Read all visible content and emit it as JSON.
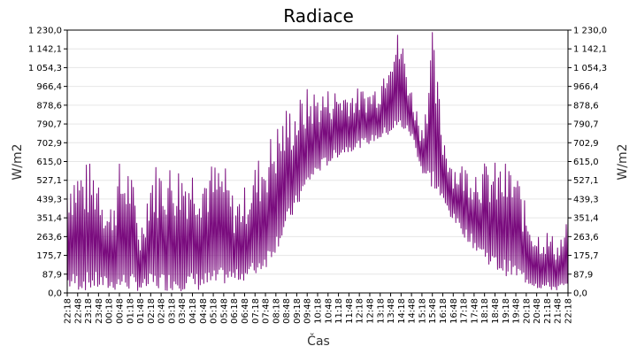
{
  "chart_data": {
    "type": "line",
    "title": "Radiace",
    "xlabel": "Čas",
    "ylabel_left": "W/m2",
    "ylabel_right": "W/m2",
    "ylim": [
      0,
      1230
    ],
    "yticks": [
      "0,0",
      "87,9",
      "175,7",
      "263,6",
      "351,4",
      "439,3",
      "527,1",
      "615,0",
      "702,9",
      "790,7",
      "878,6",
      "966,4",
      "1 054,3",
      "1 142,1",
      "1 230,0"
    ],
    "xticks": [
      "22:18",
      "22:48",
      "23:18",
      "23:48",
      "00:18",
      "00:48",
      "01:18",
      "01:48",
      "02:18",
      "02:48",
      "03:18",
      "03:48",
      "04:18",
      "04:48",
      "05:18",
      "05:48",
      "06:18",
      "06:48",
      "07:18",
      "07:48",
      "08:18",
      "08:48",
      "09:18",
      "09:48",
      "10:18",
      "10:48",
      "11:18",
      "11:48",
      "12:18",
      "12:48",
      "13:18",
      "13:48",
      "14:18",
      "14:48",
      "15:18",
      "15:48",
      "16:18",
      "16:48",
      "17:18",
      "17:48",
      "18:18",
      "18:48",
      "19:18",
      "19:48",
      "20:18",
      "20:48",
      "21:18",
      "21:48",
      "22:18"
    ],
    "grid": true,
    "legend": "none",
    "series": [
      {
        "color": "#7a0c7e",
        "x": [
          "22:18",
          "22:48",
          "23:18",
          "23:48",
          "00:18",
          "00:48",
          "01:18",
          "01:48",
          "02:18",
          "02:48",
          "03:18",
          "03:48",
          "04:18",
          "04:48",
          "05:18",
          "05:48",
          "06:18",
          "06:48",
          "07:18",
          "07:48",
          "08:18",
          "08:48",
          "09:18",
          "09:48",
          "10:18",
          "10:48",
          "11:18",
          "11:48",
          "12:18",
          "12:48",
          "13:18",
          "13:48",
          "14:18",
          "14:48",
          "15:18",
          "15:48",
          "16:18",
          "16:48",
          "17:18",
          "17:48",
          "18:18",
          "18:48",
          "19:18",
          "19:48",
          "20:18",
          "20:48",
          "21:18",
          "21:48",
          "22:18"
        ],
        "low": [
          10,
          10,
          10,
          10,
          10,
          10,
          10,
          10,
          10,
          10,
          10,
          10,
          10,
          10,
          20,
          40,
          50,
          60,
          80,
          120,
          200,
          300,
          400,
          500,
          560,
          600,
          640,
          660,
          680,
          700,
          720,
          740,
          760,
          720,
          550,
          480,
          400,
          330,
          260,
          200,
          150,
          100,
          80,
          60,
          40,
          20,
          10,
          10,
          10
        ],
        "high": [
          615,
          615,
          615,
          615,
          400,
          615,
          615,
          300,
          615,
          615,
          615,
          615,
          615,
          615,
          615,
          615,
          450,
          500,
          615,
          700,
          790,
          880,
          900,
          960,
          960,
          960,
          960,
          960,
          960,
          960,
          1000,
          1230,
          1230,
          960,
          790,
          1230,
          790,
          615,
          615,
          615,
          615,
          615,
          615,
          600,
          400,
          300,
          300,
          250,
          350
        ]
      }
    ]
  }
}
